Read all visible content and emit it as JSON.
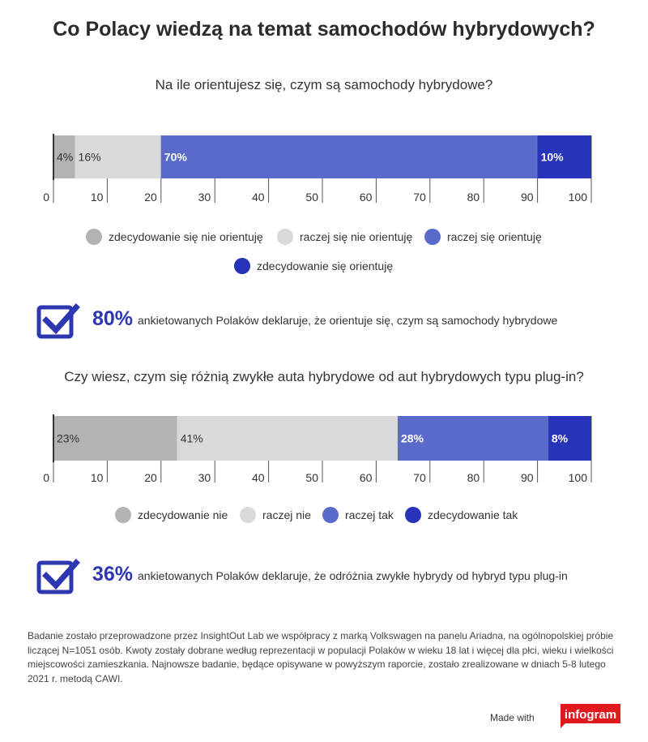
{
  "title": "Co Polacy wiedzą na temat samochodów hybrydowych?",
  "chart_data": [
    {
      "type": "bar",
      "orientation": "horizontal-stacked",
      "title": "Na ile orientujesz się, czym są samochody hybrydowe?",
      "xlim": [
        0,
        100
      ],
      "ticks": [
        "0",
        "10",
        "20",
        "30",
        "40",
        "50",
        "60",
        "70",
        "80",
        "90",
        "100"
      ],
      "series": [
        {
          "name": "zdecydowanie się nie orientuję",
          "value": 4,
          "label": "4%",
          "color": "#b3b3b3"
        },
        {
          "name": "raczej się nie orientuję",
          "value": 16,
          "label": "16%",
          "color": "#d9d9d9"
        },
        {
          "name": "raczej się orientuję",
          "value": 70,
          "label": "70%",
          "color": "#5a6acb"
        },
        {
          "name": "zdecydowanie się orientuję",
          "value": 10,
          "label": "10%",
          "color": "#2733b8"
        }
      ],
      "legend": "bottom"
    },
    {
      "type": "bar",
      "orientation": "horizontal-stacked",
      "title": "Czy wiesz, czym się różnią zwykłe auta hybrydowe od aut hybrydowych typu plug-in?",
      "xlim": [
        0,
        100
      ],
      "ticks": [
        "0",
        "10",
        "20",
        "30",
        "40",
        "50",
        "60",
        "70",
        "80",
        "90",
        "100"
      ],
      "series": [
        {
          "name": "zdecydowanie nie",
          "value": 23,
          "label": "23%",
          "color": "#b3b3b3"
        },
        {
          "name": "raczej nie",
          "value": 41,
          "label": "41%",
          "color": "#d9d9d9"
        },
        {
          "name": "raczej tak",
          "value": 28,
          "label": "28%",
          "color": "#5a6acb"
        },
        {
          "name": "zdecydowanie tak",
          "value": 8,
          "label": "8%",
          "color": "#2733b8"
        }
      ],
      "legend": "bottom"
    }
  ],
  "callouts": [
    {
      "pct": "80%",
      "text": "ankietowanych Polaków deklaruje, że orientuje się, czym są samochody hybrydowe"
    },
    {
      "pct": "36%",
      "text": "ankietowanych Polaków deklaruje, że odróżnia zwykłe hybrydy od hybryd typu plug-in"
    }
  ],
  "note": "Badanie zostało przeprowadzone przez InsightOut Lab we współpracy z marką Volkswagen na panelu Ariadna, na ogólnopolskiej próbie liczącej N=1051 osób. Kwoty zostały dobrane według reprezentacji w populacji Polaków w wieku 18 lat i więcej dla płci, wieku i wielkości miejscowości zamieszkania. Najnowsze badanie, będące opisywane w powyższym raporcie, zostało zrealizowane  w dniach 5-8 lutego 2021 r. metodą CAWI.",
  "footer": {
    "made_with": "Made with",
    "logo": "infogram"
  },
  "colors": {
    "accent": "#2d37b0",
    "logo": "#e0191f"
  }
}
